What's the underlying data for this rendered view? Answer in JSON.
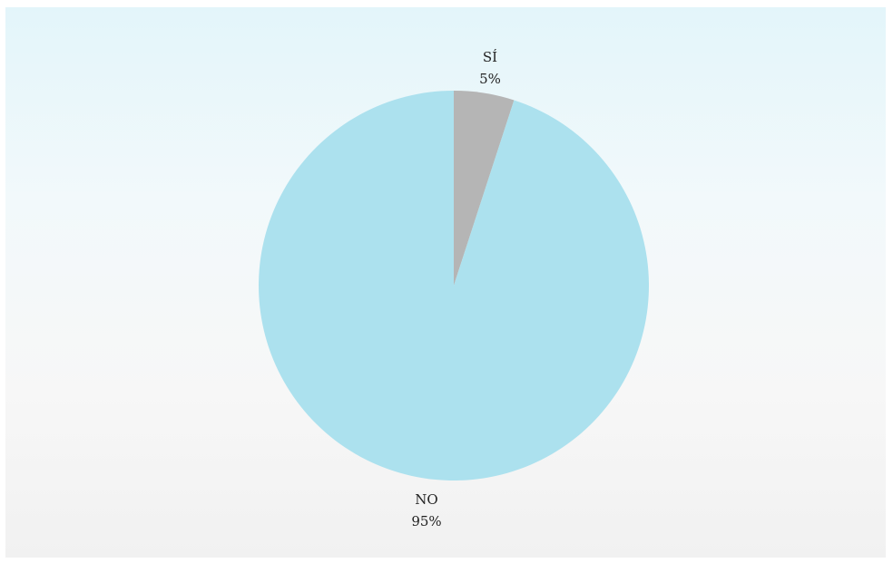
{
  "chart_data": {
    "type": "pie",
    "slices": [
      {
        "label": "SÍ",
        "value": 5,
        "value_label": "5%",
        "color": "#b5b5b5"
      },
      {
        "label": "NO",
        "value": 95,
        "value_label": "95%",
        "color": "#ace1ee"
      }
    ],
    "start_angle_deg": 0,
    "direction": "clockwise",
    "legend": "none",
    "background_color": "#eaf6f9"
  }
}
